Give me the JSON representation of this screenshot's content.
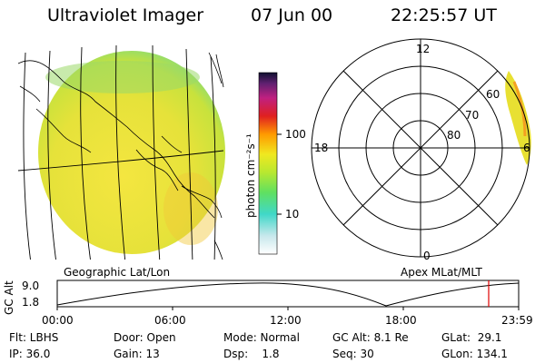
{
  "header": {
    "title": "Ultraviolet Imager",
    "date": "07 Jun 00",
    "time": "22:25:57 UT"
  },
  "colorbar": {
    "label": "photon cm⁻²s⁻¹",
    "ticks": [
      "100",
      "10"
    ]
  },
  "polar": {
    "mlt_top": "12",
    "mlt_left": "18",
    "mlt_right": "6",
    "mlt_bottom": "0",
    "lat_labels": [
      "60",
      "70",
      "80"
    ]
  },
  "panel_labels": {
    "left": "Geographic Lat/Lon",
    "right": "Apex MLat/MLT"
  },
  "altitude_plot": {
    "axis_label": "GC Alt",
    "y_ticks": [
      "9.0",
      "1.8"
    ],
    "x_ticks": [
      "00:00",
      "06:00",
      "12:00",
      "18:00",
      "23:59"
    ]
  },
  "info": {
    "row1": {
      "flt": "Flt: LBHS",
      "door": "Door: Open",
      "mode": "Mode: Normal",
      "gc_alt": "GC Alt: 8.1 Re",
      "glat": "GLat:  29.1"
    },
    "row2": {
      "ip": "IP: 36.0",
      "gain": "Gain: 13",
      "dsp": "Dsp:    1.8",
      "seq": "Seq: 30",
      "glon": "GLon: 134.1"
    }
  }
}
